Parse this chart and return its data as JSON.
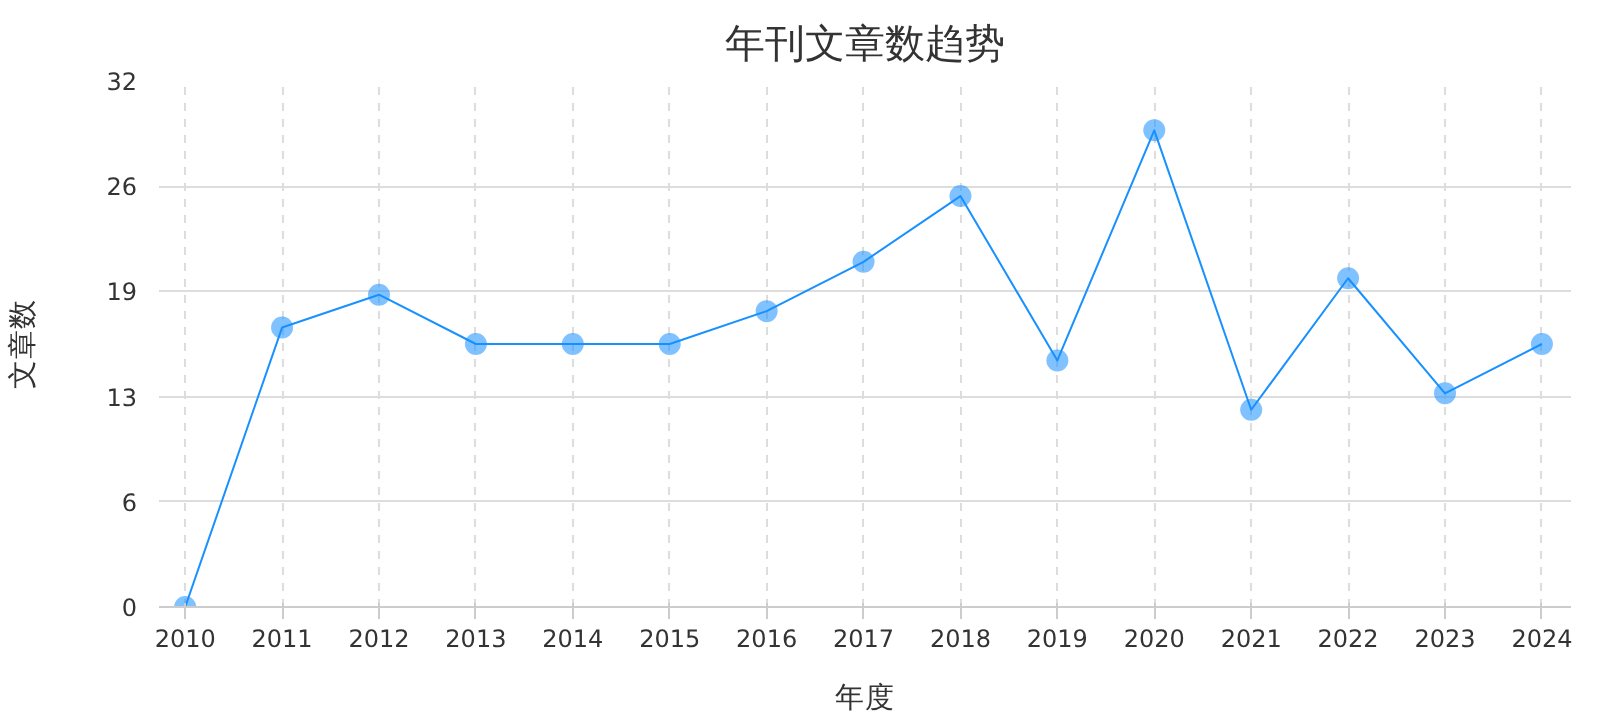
{
  "chart_data": {
    "type": "line",
    "title": "年刊文章数趋势",
    "xlabel": "年度",
    "ylabel": "文章数",
    "categories": [
      "2010",
      "2011",
      "2012",
      "2013",
      "2014",
      "2015",
      "2016",
      "2017",
      "2018",
      "2019",
      "2020",
      "2021",
      "2022",
      "2023",
      "2024"
    ],
    "series": [
      {
        "color": "#1890ff",
        "values": [
          0,
          17,
          19,
          16,
          16,
          16,
          18,
          21,
          25,
          15,
          29,
          12,
          20,
          13,
          16
        ]
      }
    ],
    "ylim": [
      0,
      32
    ],
    "yticks": [
      0,
      {
        "value": 6.4,
        "label": "6"
      },
      {
        "value": 12.8,
        "label": "13"
      },
      {
        "value": 19.2,
        "label": "19"
      },
      {
        "value": 25.6,
        "label": "26"
      },
      32
    ],
    "grid": true,
    "marker": "circle",
    "line_style": "solid"
  }
}
